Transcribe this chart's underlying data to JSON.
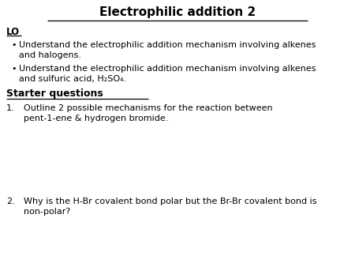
{
  "title": "Electrophilic addition 2",
  "background_color": "#ffffff",
  "text_color": "#000000",
  "lo_label": "LO",
  "bullet1": "Understand the electrophilic addition mechanism involving alkenes\nand halogens.",
  "bullet2": "Understand the electrophilic addition mechanism involving alkenes\nand sulfuric acid, H₂SO₄.",
  "starter_label": "Starter questions",
  "q1_num": "1.",
  "q1_text": "Outline 2 possible mechanisms for the reaction between\npent-1-ene & hydrogen bromide.",
  "q2_num": "2.",
  "q2_text": "Why is the H-Br covalent bond polar but the Br-Br covalent bond is\nnon-polar?",
  "title_fs": 11.0,
  "lo_fs": 8.5,
  "bullet_fs": 8.0,
  "starter_fs": 9.0,
  "q_fs": 8.0
}
